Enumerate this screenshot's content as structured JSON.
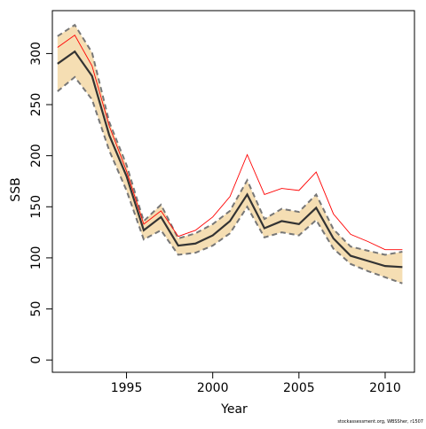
{
  "chart_data": {
    "type": "line",
    "xlabel": "Year",
    "ylabel": "SSB",
    "footer": "stockassessment.org, WBSSher, r1507",
    "xlim": [
      1990.7,
      2011.7
    ],
    "ylim": [
      -12,
      342
    ],
    "x_ticks": [
      1995,
      2000,
      2005,
      2010
    ],
    "y_ticks": [
      0,
      50,
      100,
      150,
      200,
      250,
      300
    ],
    "grid": false,
    "colors": {
      "band": "#f5deb3",
      "estimate": "#333333",
      "bounds": "#777777",
      "red_line": "#ff0000"
    },
    "x": [
      1991,
      1992,
      1993,
      1994,
      1995,
      1996,
      1997,
      1998,
      1999,
      2000,
      2001,
      2002,
      2003,
      2004,
      2005,
      2006,
      2007,
      2008,
      2009,
      2010,
      2011
    ],
    "series": [
      {
        "role": "estimate",
        "values": [
          290,
          302,
          278,
          220,
          180,
          127,
          140,
          112,
          114,
          122,
          136,
          162,
          129,
          136,
          133,
          149,
          119,
          102,
          97,
          92,
          91
        ]
      },
      {
        "role": "upper",
        "values": [
          317,
          328,
          301,
          233,
          191,
          136,
          152,
          119,
          124,
          133,
          146,
          176,
          138,
          148,
          145,
          162,
          128,
          111,
          107,
          103,
          106
        ]
      },
      {
        "role": "lower",
        "values": [
          263,
          277,
          255,
          205,
          166,
          118,
          127,
          103,
          105,
          112,
          124,
          150,
          120,
          125,
          122,
          137,
          109,
          94,
          87,
          81,
          75
        ]
      },
      {
        "role": "red",
        "values": [
          306,
          318,
          288,
          229,
          185,
          133,
          146,
          121,
          127,
          140,
          160,
          201,
          162,
          168,
          166,
          184,
          143,
          123,
          116,
          108,
          108
        ]
      }
    ]
  }
}
